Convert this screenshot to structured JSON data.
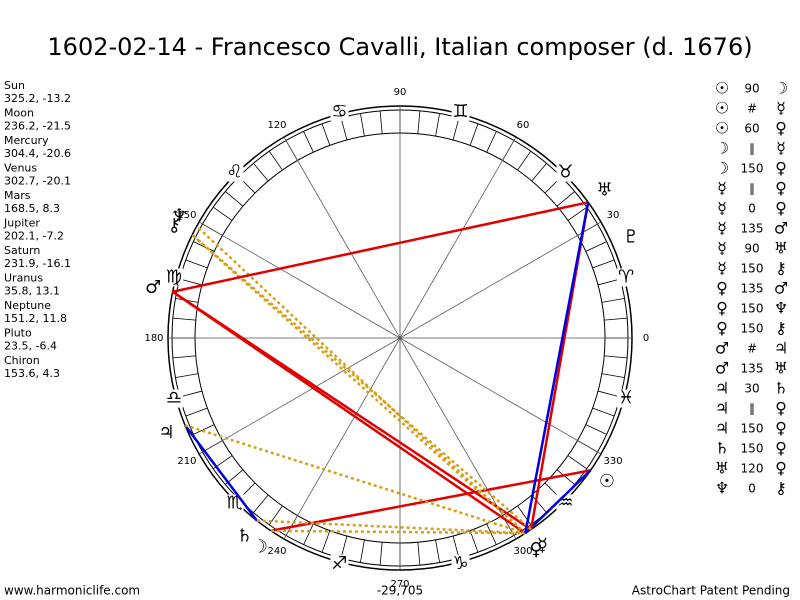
{
  "header": {
    "title": "1602-02-14 - Francesco Cavalli, Italian composer (d. 1676)"
  },
  "planets": [
    {
      "name": "Sun",
      "glyph": "☉",
      "position": "325.2, -13.2"
    },
    {
      "name": "Moon",
      "glyph": "☽",
      "position": "236.2, -21.5"
    },
    {
      "name": "Mercury",
      "glyph": "☿",
      "position": "304.4, -20.6"
    },
    {
      "name": "Venus",
      "glyph": "♀",
      "position": "302.7, -20.1"
    },
    {
      "name": "Mars",
      "glyph": "♂",
      "position": "168.5, 8.3"
    },
    {
      "name": "Jupiter",
      "glyph": "♃",
      "position": "202.1, -7.2"
    },
    {
      "name": "Saturn",
      "glyph": "♄",
      "position": "231.9, -16.1"
    },
    {
      "name": "Uranus",
      "glyph": "♅",
      "position": "35.8, 13.1"
    },
    {
      "name": "Neptune",
      "glyph": "♆",
      "position": "151.2, 11.8"
    },
    {
      "name": "Pluto",
      "glyph": "♇",
      "position": "23.5, -6.4"
    },
    {
      "name": "Chiron",
      "glyph": "⚷",
      "position": "153.6, 4.3"
    }
  ],
  "signs": [
    "♈",
    "♉",
    "♊",
    "♋",
    "♌",
    "♍",
    "♎",
    "♏",
    "♐",
    "♑",
    "♒",
    "♓"
  ],
  "wheel_degrees": [
    0,
    30,
    60,
    90,
    120,
    150,
    180,
    210,
    240,
    270,
    300,
    330
  ],
  "aspects": [
    {
      "from": "☉",
      "angle": "90",
      "to": "☽"
    },
    {
      "from": "☉",
      "angle": "#",
      "to": "☿"
    },
    {
      "from": "☉",
      "angle": "60",
      "to": "♀"
    },
    {
      "from": "☽",
      "angle": "∥",
      "to": "☿"
    },
    {
      "from": "☽",
      "angle": "150",
      "to": "♀"
    },
    {
      "from": "☿",
      "angle": "∥",
      "to": "♀"
    },
    {
      "from": "☿",
      "angle": "0",
      "to": "♀"
    },
    {
      "from": "☿",
      "angle": "135",
      "to": "♂"
    },
    {
      "from": "☿",
      "angle": "90",
      "to": "♅"
    },
    {
      "from": "☿",
      "angle": "150",
      "to": "⚷"
    },
    {
      "from": "♀",
      "angle": "135",
      "to": "♂"
    },
    {
      "from": "♀",
      "angle": "150",
      "to": "♆"
    },
    {
      "from": "♀",
      "angle": "150",
      "to": "⚷"
    },
    {
      "from": "♂",
      "angle": "#",
      "to": "♃"
    },
    {
      "from": "♂",
      "angle": "135",
      "to": "♅"
    },
    {
      "from": "♃",
      "angle": "30",
      "to": "♄"
    },
    {
      "from": "♃",
      "angle": "∥",
      "to": "♀"
    },
    {
      "from": "♃",
      "angle": "150",
      "to": "♀"
    },
    {
      "from": "♄",
      "angle": "150",
      "to": "♀"
    },
    {
      "from": "♅",
      "angle": "120",
      "to": "♀"
    },
    {
      "from": "♆",
      "angle": "0",
      "to": "⚷"
    }
  ],
  "footer": {
    "left": "www.harmoniclife.com",
    "center": "-29,705",
    "right": "AstroChart Patent Pending"
  }
}
